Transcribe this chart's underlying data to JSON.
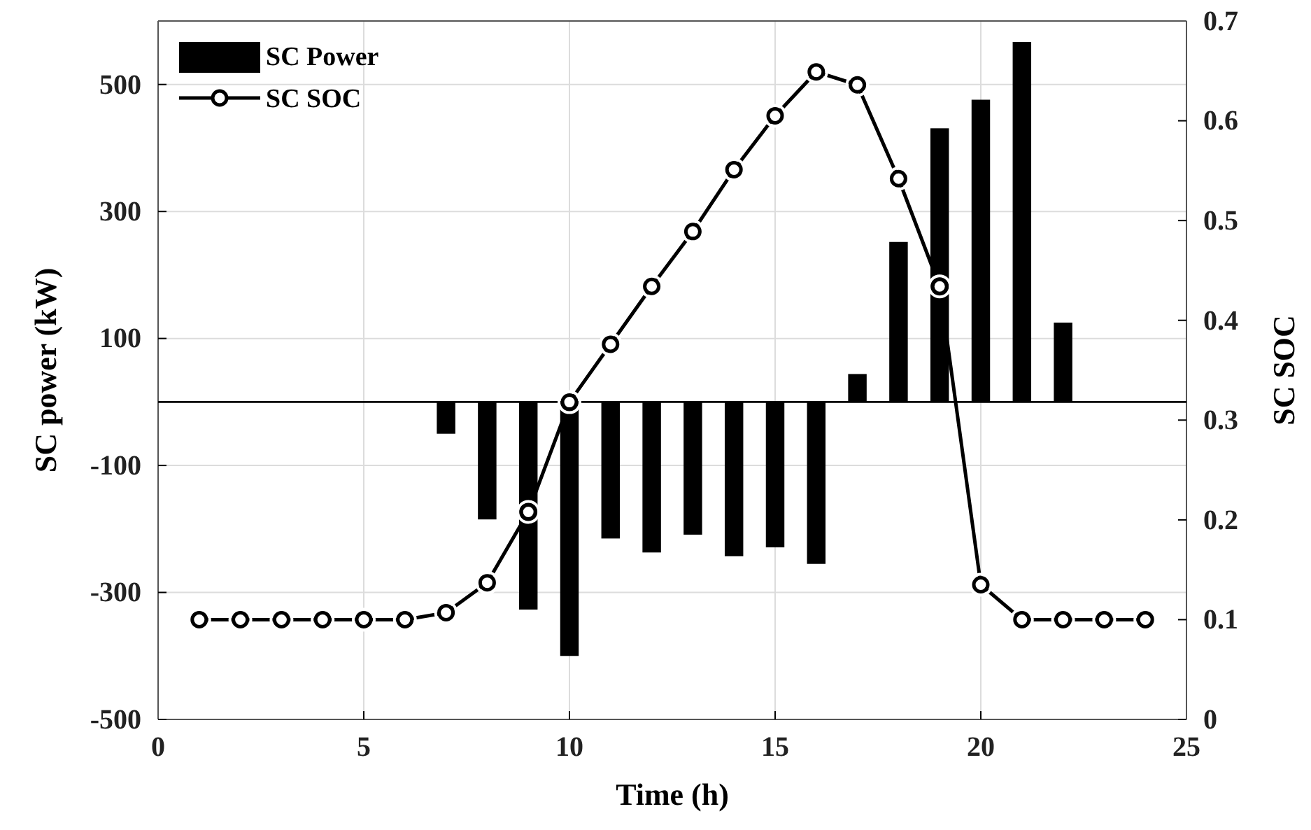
{
  "chart_data": {
    "type": "bar",
    "xlabel": "Time (h)",
    "ylabel": "SC power (kW)",
    "y2label": "SC SOC",
    "x": [
      1,
      2,
      3,
      4,
      5,
      6,
      7,
      8,
      9,
      10,
      11,
      12,
      13,
      14,
      15,
      16,
      17,
      18,
      19,
      20,
      21,
      22,
      23,
      24
    ],
    "series": [
      {
        "name": "SC Power",
        "color": "#000000",
        "values": [
          0,
          0,
          0,
          0,
          0,
          0,
          -50,
          -185,
          -327,
          -400,
          -215,
          -237,
          -209,
          -243,
          -229,
          -255,
          44,
          252,
          431,
          476,
          567,
          125,
          0,
          0
        ]
      },
      {
        "name": "SC SOC",
        "type": "line",
        "axis": "y2",
        "color": "#000000",
        "marker": "circle",
        "values": [
          0.1,
          0.1,
          0.1,
          0.1,
          0.1,
          0.1,
          0.107,
          0.137,
          0.208,
          0.318,
          0.376,
          0.434,
          0.489,
          0.551,
          0.605,
          0.649,
          0.636,
          0.542,
          0.434,
          0.135,
          0.1,
          0.1,
          0.1,
          0.1
        ]
      }
    ],
    "xlim": [
      0,
      25
    ],
    "xticks": [
      0,
      5,
      10,
      15,
      20,
      25
    ],
    "ylim": [
      -500,
      600
    ],
    "yticks": [
      -500,
      -300,
      -100,
      100,
      300,
      500
    ],
    "y2lim": [
      0,
      0.7
    ],
    "y2ticks": [
      0,
      0.1,
      0.2,
      0.3,
      0.4,
      0.5,
      0.6,
      0.7
    ],
    "ref_lines": [
      {
        "axis": "y",
        "value": 0,
        "color": "#000000"
      }
    ],
    "grid": true,
    "legend": "top left"
  }
}
